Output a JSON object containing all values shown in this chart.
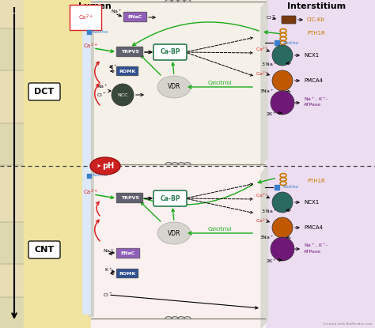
{
  "header_lumen": "Lumen",
  "header_interstitium": "Interstitium",
  "label_dct": "DCT",
  "label_cnt": "CNT",
  "bg_outer": "#e8ddb5",
  "bg_lumen": "#f0e4a0",
  "bg_cell_dct": "#f5f0e8",
  "bg_cell_cnt": "#faf0f0",
  "bg_interstitium": "#ecddf0",
  "colors": {
    "green_arrow": "#1aaa1a",
    "red_arrow": "#dd2222",
    "ca_text": "#dd2222",
    "klotho_blue": "#3a80cc",
    "enac_purple": "#9060b8",
    "trpv5_gray": "#606070",
    "romk_blue": "#305090",
    "ncc_darkgreen": "#384838",
    "cabp_outline": "#2a7a50",
    "vdr_fill": "#c8c8c8",
    "ncx1_teal": "#2a6a60",
    "pmca4_orange": "#c05800",
    "atpase_purple": "#701878",
    "clckb_brown": "#7a3a10",
    "pth1r_coil": "#c87800",
    "ph_red": "#cc2020",
    "white": "#ffffff",
    "black": "#111111",
    "gray_membrane": "#b0b0b0"
  },
  "footer": "Created with BioRender.com"
}
